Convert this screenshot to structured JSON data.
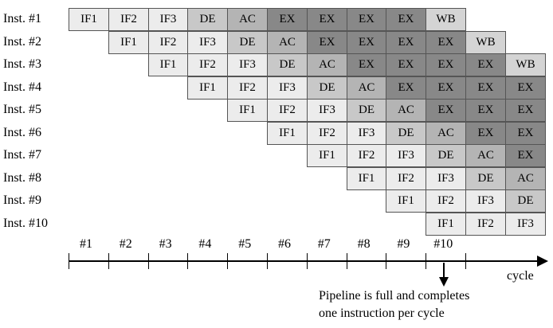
{
  "instructions": [
    "Inst. #1",
    "Inst. #2",
    "Inst. #3",
    "Inst. #4",
    "Inst. #5",
    "Inst. #6",
    "Inst. #7",
    "Inst. #8",
    "Inst. #9",
    "Inst. #10"
  ],
  "stages": [
    "IF1",
    "IF2",
    "IF3",
    "DE",
    "AC",
    "EX",
    "EX",
    "EX",
    "EX",
    "WB"
  ],
  "visible_cycles": 12,
  "stage_colors": {
    "IF": "#ececec",
    "DE": "#c8c8c8",
    "AC": "#b4b4b4",
    "EX": "#888888",
    "WB": "#d4d4d4"
  },
  "cycle_labels": [
    "#1",
    "#2",
    "#3",
    "#4",
    "#5",
    "#6",
    "#7",
    "#8",
    "#9",
    "#10"
  ],
  "axis_label": "cycle",
  "annotation": {
    "line1": "Pipeline is full and completes",
    "line2": "one instruction per cycle"
  }
}
